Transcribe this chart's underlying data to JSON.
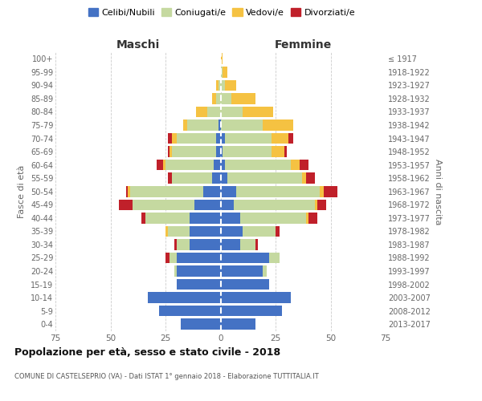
{
  "age_groups": [
    "0-4",
    "5-9",
    "10-14",
    "15-19",
    "20-24",
    "25-29",
    "30-34",
    "35-39",
    "40-44",
    "45-49",
    "50-54",
    "55-59",
    "60-64",
    "65-69",
    "70-74",
    "75-79",
    "80-84",
    "85-89",
    "90-94",
    "95-99",
    "100+"
  ],
  "birth_years": [
    "2013-2017",
    "2008-2012",
    "2003-2007",
    "1998-2002",
    "1993-1997",
    "1988-1992",
    "1983-1987",
    "1978-1982",
    "1973-1977",
    "1968-1972",
    "1963-1967",
    "1958-1962",
    "1953-1957",
    "1948-1952",
    "1943-1947",
    "1938-1942",
    "1933-1937",
    "1928-1932",
    "1923-1927",
    "1918-1922",
    "≤ 1917"
  ],
  "maschi": {
    "celibi": [
      18,
      28,
      33,
      20,
      20,
      20,
      14,
      14,
      14,
      12,
      8,
      4,
      3,
      2,
      2,
      1,
      0,
      0,
      0,
      0,
      0
    ],
    "coniugati": [
      0,
      0,
      0,
      0,
      1,
      3,
      6,
      10,
      20,
      28,
      33,
      18,
      22,
      20,
      18,
      14,
      6,
      2,
      1,
      0,
      0
    ],
    "vedovi": [
      0,
      0,
      0,
      0,
      0,
      0,
      0,
      1,
      0,
      0,
      1,
      0,
      1,
      1,
      2,
      2,
      5,
      2,
      1,
      0,
      0
    ],
    "divorziati": [
      0,
      0,
      0,
      0,
      0,
      2,
      1,
      0,
      2,
      6,
      1,
      2,
      3,
      1,
      2,
      0,
      0,
      0,
      0,
      0,
      0
    ]
  },
  "femmine": {
    "nubili": [
      16,
      28,
      32,
      22,
      19,
      22,
      9,
      10,
      9,
      6,
      7,
      3,
      2,
      1,
      2,
      0,
      0,
      0,
      0,
      0,
      0
    ],
    "coniugate": [
      0,
      0,
      0,
      0,
      2,
      5,
      7,
      15,
      30,
      37,
      38,
      34,
      30,
      22,
      21,
      19,
      10,
      5,
      2,
      1,
      0
    ],
    "vedove": [
      0,
      0,
      0,
      0,
      0,
      0,
      0,
      0,
      1,
      1,
      2,
      2,
      4,
      6,
      8,
      14,
      14,
      11,
      5,
      2,
      1
    ],
    "divorziate": [
      0,
      0,
      0,
      0,
      0,
      0,
      1,
      2,
      4,
      4,
      6,
      4,
      4,
      1,
      2,
      0,
      0,
      0,
      0,
      0,
      0
    ]
  },
  "colors": {
    "celibi": "#4472C4",
    "coniugati": "#C5D9A0",
    "vedovi": "#F5C242",
    "divorziati": "#C0202A"
  },
  "title_main": "Popolazione per età, sesso e stato civile - 2018",
  "title_sub": "COMUNE DI CASTELSEPRIO (VA) - Dati ISTAT 1° gennaio 2018 - Elaborazione TUTTITALIA.IT",
  "label_maschi": "Maschi",
  "label_femmine": "Femmine",
  "label_fasce": "Fasce di età",
  "label_anni": "Anni di nascita",
  "xlim": 75,
  "legend_labels": [
    "Celibi/Nubili",
    "Coniugati/e",
    "Vedovi/e",
    "Divorziati/e"
  ],
  "bg_color": "#ffffff"
}
